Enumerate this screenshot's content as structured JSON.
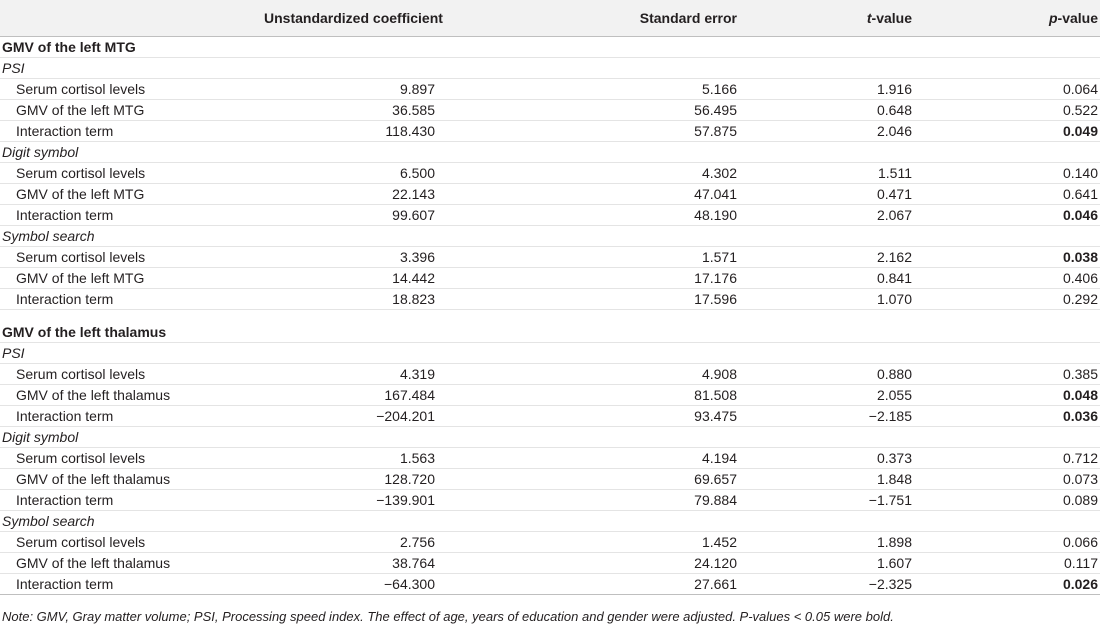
{
  "header": {
    "col0": "",
    "col1": "Unstandardized coefficient",
    "col2": "Standard error",
    "col3_italic": "t",
    "col3_rest": "-value",
    "col4_italic": "p",
    "col4_rest": "-value"
  },
  "sections": [
    {
      "title": "GMV of the left MTG",
      "groups": [
        {
          "name": "PSI",
          "rows": [
            {
              "label": "Serum cortisol levels",
              "coef": "9.897",
              "se": "5.166",
              "t": "1.916",
              "p": "0.064",
              "bold": false
            },
            {
              "label": "GMV of the left MTG",
              "coef": "36.585",
              "se": "56.495",
              "t": "0.648",
              "p": "0.522",
              "bold": false
            },
            {
              "label": "Interaction term",
              "coef": "118.430",
              "se": "57.875",
              "t": "2.046",
              "p": "0.049",
              "bold": true
            }
          ]
        },
        {
          "name": "Digit symbol",
          "rows": [
            {
              "label": "Serum cortisol levels",
              "coef": "6.500",
              "se": "4.302",
              "t": "1.511",
              "p": "0.140",
              "bold": false
            },
            {
              "label": "GMV of the left MTG",
              "coef": "22.143",
              "se": "47.041",
              "t": "0.471",
              "p": "0.641",
              "bold": false
            },
            {
              "label": "Interaction term",
              "coef": "99.607",
              "se": "48.190",
              "t": "2.067",
              "p": "0.046",
              "bold": true
            }
          ]
        },
        {
          "name": "Symbol search",
          "rows": [
            {
              "label": "Serum cortisol levels",
              "coef": "3.396",
              "se": "1.571",
              "t": "2.162",
              "p": "0.038",
              "bold": true
            },
            {
              "label": "GMV of the left MTG",
              "coef": "14.442",
              "se": "17.176",
              "t": "0.841",
              "p": "0.406",
              "bold": false
            },
            {
              "label": "Interaction term",
              "coef": "18.823",
              "se": "17.596",
              "t": "1.070",
              "p": "0.292",
              "bold": false
            }
          ]
        }
      ]
    },
    {
      "title": "GMV of the left thalamus",
      "groups": [
        {
          "name": "PSI",
          "rows": [
            {
              "label": "Serum cortisol levels",
              "coef": "4.319",
              "se": "4.908",
              "t": "0.880",
              "p": "0.385",
              "bold": false
            },
            {
              "label": "GMV of the left thalamus",
              "coef": "167.484",
              "se": "81.508",
              "t": "2.055",
              "p": "0.048",
              "bold": true
            },
            {
              "label": "Interaction term",
              "coef": "−204.201",
              "se": "93.475",
              "t": "−2.185",
              "p": "0.036",
              "bold": true
            }
          ]
        },
        {
          "name": "Digit symbol",
          "rows": [
            {
              "label": "Serum cortisol levels",
              "coef": "1.563",
              "se": "4.194",
              "t": "0.373",
              "p": "0.712",
              "bold": false
            },
            {
              "label": "GMV of the left thalamus",
              "coef": "128.720",
              "se": "69.657",
              "t": "1.848",
              "p": "0.073",
              "bold": false
            },
            {
              "label": "Interaction term",
              "coef": "−139.901",
              "se": "79.884",
              "t": "−1.751",
              "p": "0.089",
              "bold": false
            }
          ]
        },
        {
          "name": "Symbol search",
          "rows": [
            {
              "label": "Serum cortisol levels",
              "coef": "2.756",
              "se": "1.452",
              "t": "1.898",
              "p": "0.066",
              "bold": false
            },
            {
              "label": "GMV of the left thalamus",
              "coef": "38.764",
              "se": "24.120",
              "t": "1.607",
              "p": "0.117",
              "bold": false
            },
            {
              "label": "Interaction term",
              "coef": "−64.300",
              "se": "27.661",
              "t": "−2.325",
              "p": "0.026",
              "bold": true
            }
          ]
        }
      ]
    }
  ],
  "note": "Note: GMV, Gray matter volume; PSI, Processing speed index. The effect of age, years of education and gender were adjusted. P-values < 0.05 were bold."
}
